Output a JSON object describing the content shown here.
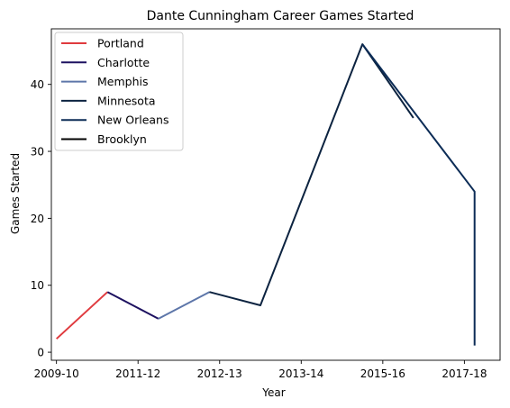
{
  "chart_data": {
    "type": "line",
    "title": "Dante Cunningham Career Games Started",
    "xlabel": "Year",
    "ylabel": "Games Started",
    "x_tick_labels": [
      "2009-10",
      "2011-12",
      "2012-13",
      "2013-14",
      "2015-16",
      "2017-18"
    ],
    "y_ticks": [
      0,
      10,
      20,
      30,
      40
    ],
    "xlim": [
      -0.1,
      8.7
    ],
    "ylim": [
      -1.2,
      48.3
    ],
    "legend_position": "top-left",
    "grid": false,
    "series": [
      {
        "name": "Portland",
        "color": "#e03a3e",
        "points": [
          [
            0,
            2
          ],
          [
            1,
            9
          ]
        ]
      },
      {
        "name": "Charlotte",
        "color": "#1d1160",
        "points": [
          [
            1,
            9
          ],
          [
            2,
            5
          ]
        ]
      },
      {
        "name": "Memphis",
        "color": "#5d76a9",
        "points": [
          [
            2,
            5
          ],
          [
            3,
            9
          ]
        ]
      },
      {
        "name": "Minnesota",
        "color": "#0c2340",
        "points": [
          [
            3,
            9
          ],
          [
            4,
            7
          ],
          [
            5,
            26.5
          ],
          [
            6,
            46
          ],
          [
            7,
            35
          ]
        ]
      },
      {
        "name": "New Orleans",
        "color": "#0c2c56",
        "points": [
          [
            6,
            46
          ],
          [
            8.2,
            24
          ],
          [
            8.2,
            1
          ]
        ]
      },
      {
        "name": "Brooklyn",
        "color": "#000000",
        "points": []
      }
    ]
  }
}
